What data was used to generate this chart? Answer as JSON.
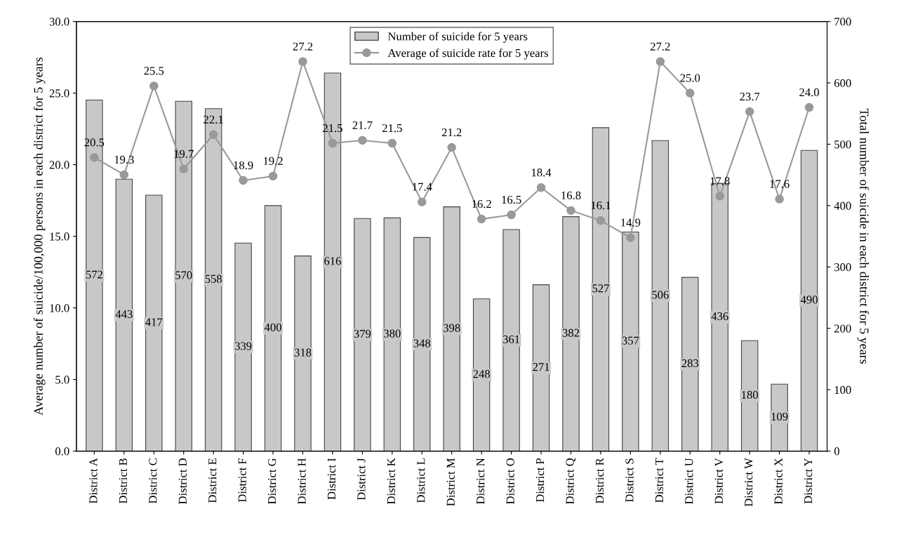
{
  "chart_data": {
    "type": "bar",
    "categories": [
      "District A",
      "District B",
      "District C",
      "District D",
      "District E",
      "District F",
      "District G",
      "District H",
      "District I",
      "District J",
      "District K",
      "District L",
      "District M",
      "District N",
      "District O",
      "District P",
      "District Q",
      "District R",
      "District S",
      "District T",
      "District U",
      "District V",
      "District W",
      "District X",
      "District Y"
    ],
    "series": [
      {
        "name": "Number of suicide for 5 years",
        "axis": "y2",
        "color": "#c8c8c8",
        "values": [
          572,
          443,
          417,
          570,
          558,
          339,
          400,
          318,
          616,
          379,
          380,
          348,
          398,
          248,
          361,
          271,
          382,
          527,
          357,
          506,
          283,
          436,
          180,
          109,
          490
        ]
      },
      {
        "name": "Average of suicide rate for 5 years",
        "type": "line",
        "axis": "y",
        "color": "#999999",
        "marker": "circle",
        "values": [
          20.5,
          19.3,
          25.5,
          19.7,
          22.1,
          18.9,
          19.2,
          27.2,
          21.5,
          21.7,
          21.5,
          17.4,
          21.2,
          16.2,
          16.5,
          18.4,
          16.8,
          16.1,
          14.9,
          27.2,
          25.0,
          17.8,
          23.7,
          17.6,
          24.0
        ],
        "value_labels": [
          "20.5",
          "19.3",
          "25.5",
          "19.7",
          "22.1",
          "18.9",
          "19.2",
          "27.2",
          "21.5",
          "21.7",
          "21.5",
          "17.4",
          "21.2",
          "16.2",
          "16.5",
          "18.4",
          "16.8",
          "16.1",
          "14.9",
          "27.2",
          "25.0",
          "17.8",
          "23.7",
          "17.6",
          "24.0"
        ]
      }
    ],
    "ylabel": "Average number of suicide/100,000 persons in each district for 5 years",
    "y2label": "Total number of suicide in each district for 5 years",
    "ylim": [
      0,
      30
    ],
    "yticks": [
      {
        "value": 0,
        "label": "0.0"
      },
      {
        "value": 5,
        "label": "5.0"
      },
      {
        "value": 10,
        "label": "10.0"
      },
      {
        "value": 15,
        "label": "15.0"
      },
      {
        "value": 20,
        "label": "20.0"
      },
      {
        "value": 25,
        "label": "25.0"
      },
      {
        "value": 30,
        "label": "30.0"
      }
    ],
    "y2lim": [
      0,
      700
    ],
    "y2ticks": [
      0,
      100,
      200,
      300,
      400,
      500,
      600,
      700
    ],
    "data_labels": true,
    "legend": "top",
    "grid": false
  }
}
